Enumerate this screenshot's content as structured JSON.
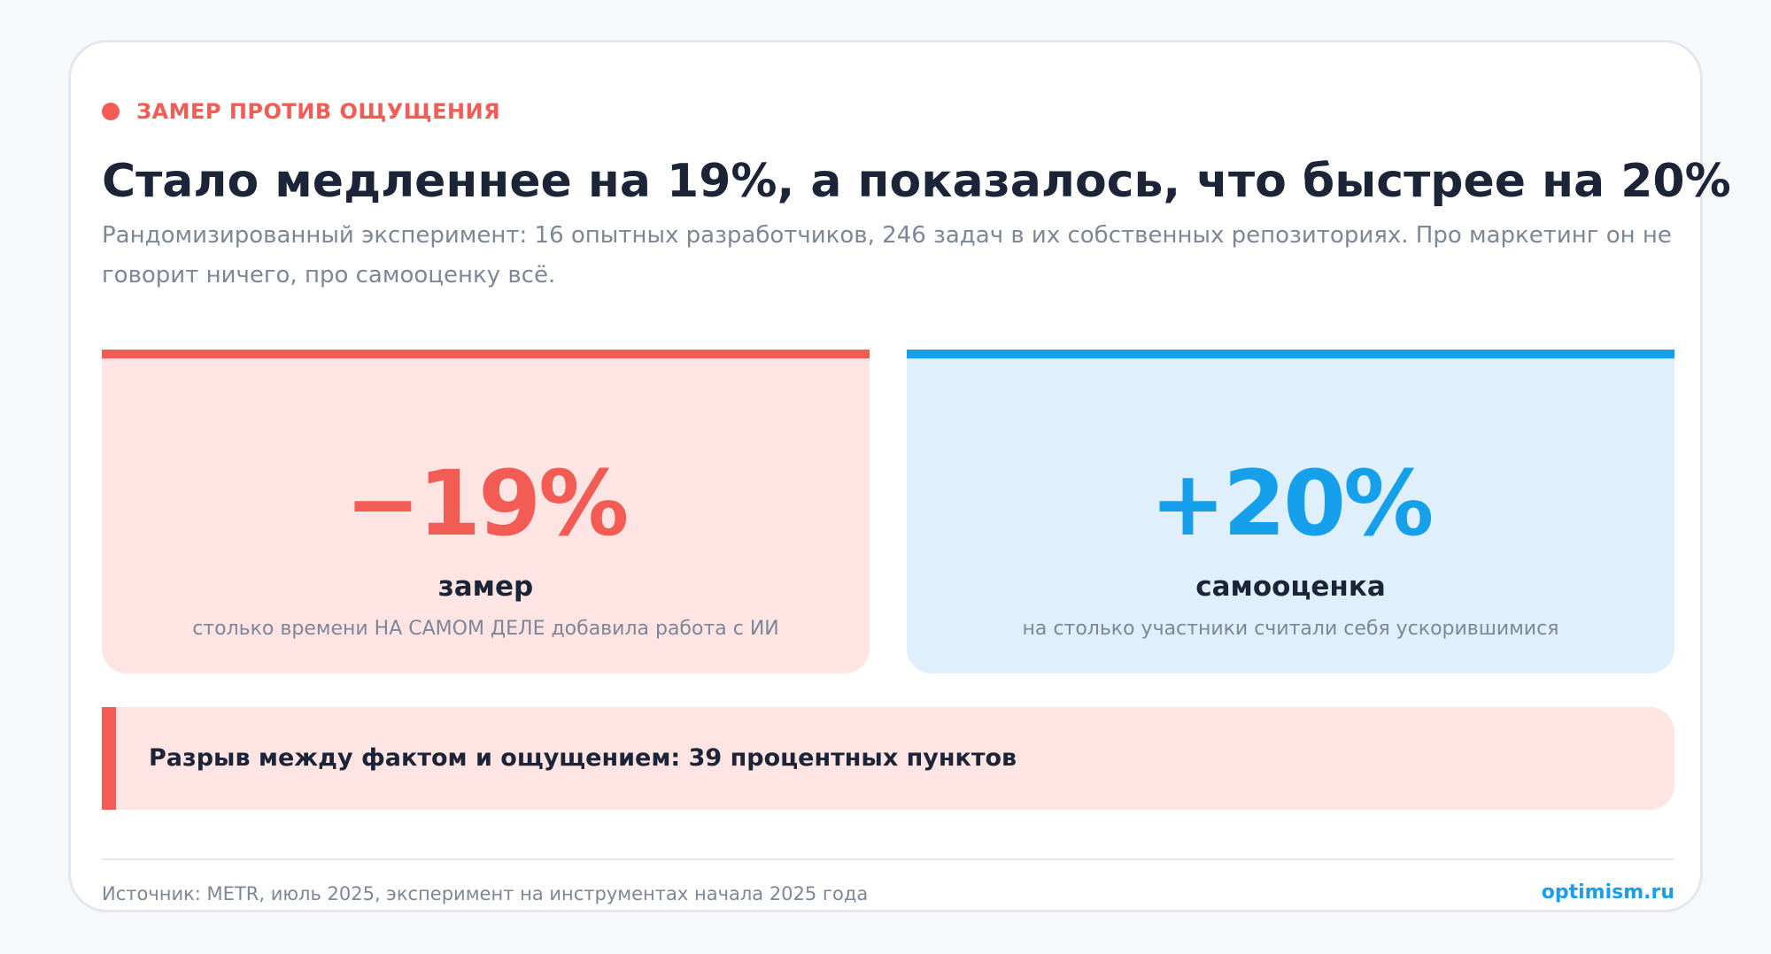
{
  "kicker": "ЗАМЕР ПРОТИВ ОЩУЩЕНИЯ",
  "title": "Стало медленнее на 19%, а показалось, что быстрее на 20%",
  "subtitle": "Рандомизированный эксперимент: 16 опытных разработчиков, 246 задач в их собственных репозиториях. Про маркетинг он не говорит ничего, про самооценку всё.",
  "stats": [
    {
      "value": "−19%",
      "label": "замер",
      "description": "столько времени НА САМОМ ДЕЛЕ добавила работа с ИИ",
      "color": "#f25c54"
    },
    {
      "value": "+20%",
      "label": "самооценка",
      "description": "на столько участники считали себя ускорившимися",
      "color": "#16a0ec"
    }
  ],
  "callout": "Разрыв между фактом и ощущением: 39 процентных пунктов",
  "footer": {
    "source": "Источник: METR, июль 2025, эксперимент на инструментах начала 2025 года",
    "brand": "optimism.ru"
  }
}
